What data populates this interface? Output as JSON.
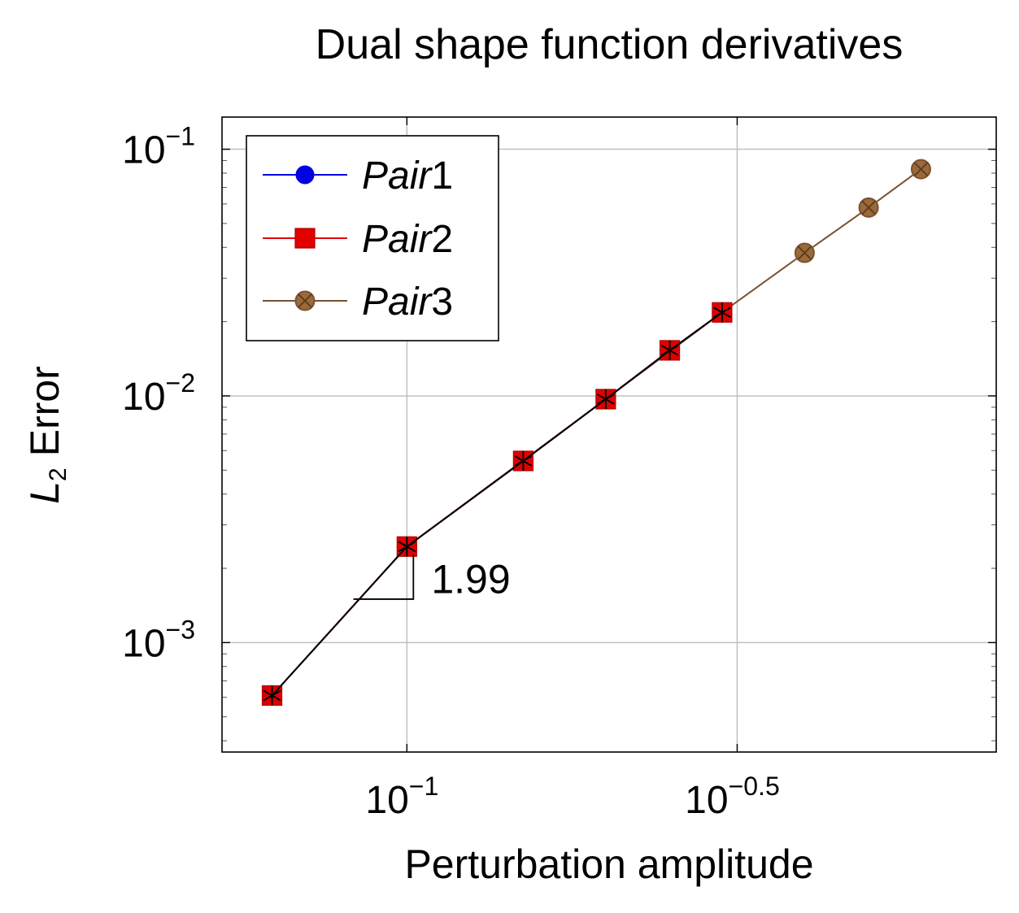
{
  "chart_data": {
    "type": "line",
    "title": "Dual shape function derivatives",
    "xlabel": "Perturbation amplitude",
    "ylabel_main": "L",
    "ylabel_sub": "2",
    "ylabel_rest": " Error",
    "x_scale": "log10",
    "y_scale": "log10",
    "xlim": [
      0.0525,
      0.78
    ],
    "ylim": [
      0.00036,
      0.135
    ],
    "grid": true,
    "legend_position": "top-left",
    "x_ticks": [
      {
        "value": 0.1,
        "base": "10",
        "exp": "−1"
      },
      {
        "value": 0.3162,
        "base": "10",
        "exp": "−0.5"
      }
    ],
    "y_ticks": [
      {
        "value": 0.001,
        "base": "10",
        "exp": "−3"
      },
      {
        "value": 0.01,
        "base": "10",
        "exp": "−2"
      },
      {
        "value": 0.1,
        "base": "10",
        "exp": "−1"
      }
    ],
    "series": [
      {
        "name": "Pair1",
        "color": "#0000e0",
        "marker": "circle",
        "x": [
          0.0625,
          0.1,
          0.15,
          0.2,
          0.25,
          0.3
        ],
        "y": [
          0.00061,
          0.00245,
          0.00545,
          0.0097,
          0.0153,
          0.0218
        ]
      },
      {
        "name": "Pair2",
        "color": "#e00000",
        "marker": "square",
        "x": [
          0.0625,
          0.1,
          0.15,
          0.2,
          0.25,
          0.3
        ],
        "y": [
          0.00061,
          0.00245,
          0.00545,
          0.0097,
          0.0153,
          0.0218
        ]
      },
      {
        "name": "Pair3",
        "color": "#7a5230",
        "fill": "#9a6a3a",
        "marker": "circle-x",
        "x": [
          0.1,
          0.2,
          0.3,
          0.4,
          0.5,
          0.6
        ],
        "y": [
          0.00245,
          0.0097,
          0.0218,
          0.038,
          0.058,
          0.083
        ]
      }
    ],
    "reference_points": {
      "marker": "asterisk",
      "color": "#000000",
      "x": [
        0.0625,
        0.1,
        0.15,
        0.2,
        0.25,
        0.3
      ],
      "y": [
        0.00061,
        0.00245,
        0.00545,
        0.0097,
        0.0153,
        0.0218
      ]
    },
    "slope_annotation": {
      "text": "1.99",
      "x_start": 0.083,
      "x_end": 0.1,
      "y_base": 0.0015,
      "y_top": 0.00245
    }
  }
}
